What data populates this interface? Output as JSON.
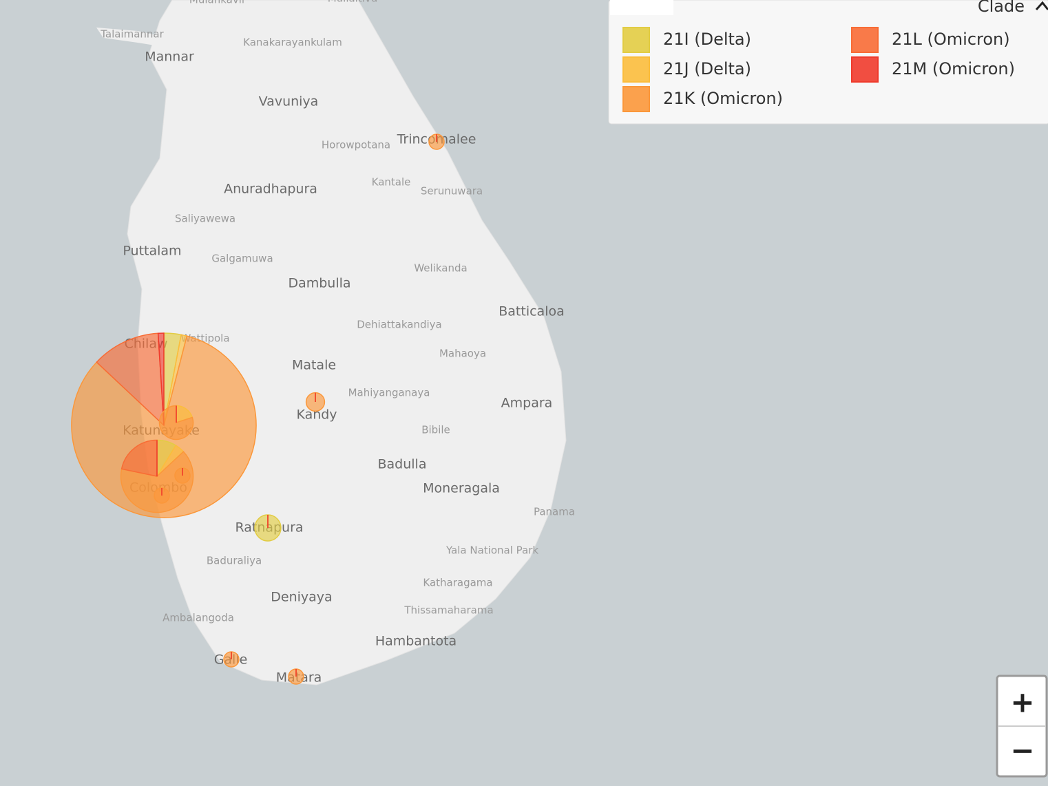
{
  "legend": {
    "title": "Clade",
    "items": [
      {
        "label": "21I (Delta)",
        "color": "#e2cc43"
      },
      {
        "label": "21J (Delta)",
        "color": "#fbbd3c"
      },
      {
        "label": "21K (Omicron)",
        "color": "#fb973a"
      },
      {
        "label": "21L (Omicron)",
        "color": "#f86c35"
      },
      {
        "label": "21M (Omicron)",
        "color": "#ef3b2c"
      }
    ]
  },
  "zoom": {
    "in": "+",
    "out": "−"
  },
  "map": {
    "labels": [
      "Mulankavil",
      "Mullaitivu",
      "Talaimannar",
      "Mannar",
      "Kanakarayankulam",
      "Vavuniya",
      "Horowpotana",
      "Trincomalee",
      "Kantale",
      "Serunuwara",
      "Anuradhapura",
      "Saliyawewa",
      "Puttalam",
      "Galgamuwa",
      "Welikanda",
      "Dambulla",
      "Batticaloa",
      "Dehiattakandiya",
      "Chilaw",
      "Wattipola",
      "Mahaoya",
      "Matale",
      "Mahiyanganaya",
      "Ampara",
      "Kandy",
      "Bibile",
      "Katunayake",
      "Badulla",
      "Moneragala",
      "Colombo",
      "Panama",
      "Ratnapura",
      "Yala National Park",
      "Baduraliya",
      "Katharagama",
      "Deniyaya",
      "Thissamaharama",
      "Ambalangoda",
      "Hambantota",
      "Galle",
      "Matara"
    ]
  },
  "pies": [
    {
      "values": [
        9,
        3,
        249,
        36,
        3
      ]
    },
    {
      "values": [
        4,
        2,
        30,
        10,
        0
      ]
    },
    {
      "values": [
        0,
        2,
        8,
        0,
        0
      ]
    },
    {
      "values": [
        0,
        0,
        3,
        0,
        0
      ]
    },
    {
      "values": [
        6,
        0,
        0,
        0,
        0
      ]
    },
    {
      "values": [
        0,
        0,
        1,
        0,
        0
      ]
    },
    {
      "values": [
        0,
        0,
        1,
        0,
        0
      ]
    },
    {
      "values": [
        0,
        0,
        1,
        0,
        0
      ]
    },
    {
      "values": [
        0,
        0,
        1,
        0,
        0
      ]
    },
    {
      "values": [
        0,
        0,
        1,
        0,
        0
      ]
    }
  ]
}
